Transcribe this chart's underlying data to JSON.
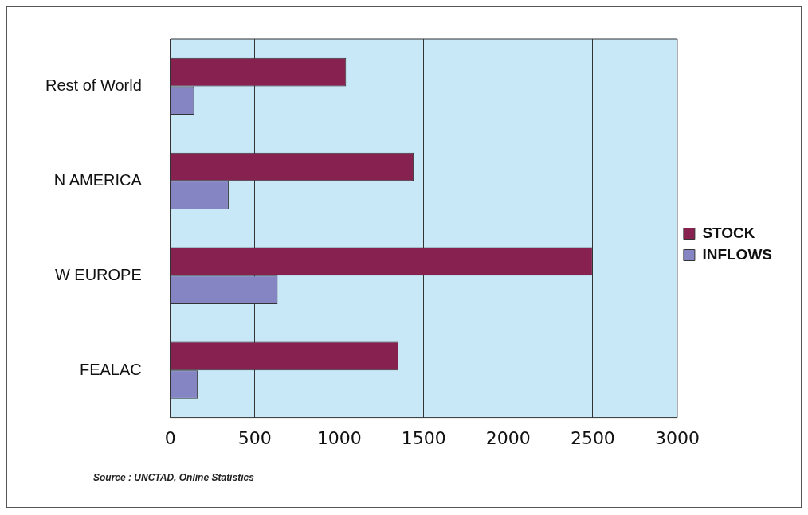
{
  "chart_data": {
    "type": "bar",
    "orientation": "horizontal",
    "categories": [
      "Rest of World",
      "N AMERICA",
      "W EUROPE",
      "FEALAC"
    ],
    "series": [
      {
        "name": "STOCK",
        "color": "#87214f",
        "values": [
          1040,
          1440,
          2500,
          1350
        ]
      },
      {
        "name": "INFLOWS",
        "color": "#8585c4",
        "values": [
          140,
          345,
          635,
          162
        ]
      }
    ],
    "xlim": [
      0,
      3000
    ],
    "xticks": [
      0,
      500,
      1000,
      1500,
      2000,
      2500,
      3000
    ],
    "grid": "x",
    "legend": "right",
    "annotations": [
      "Source : UNCTAD, Online Statistics"
    ]
  }
}
